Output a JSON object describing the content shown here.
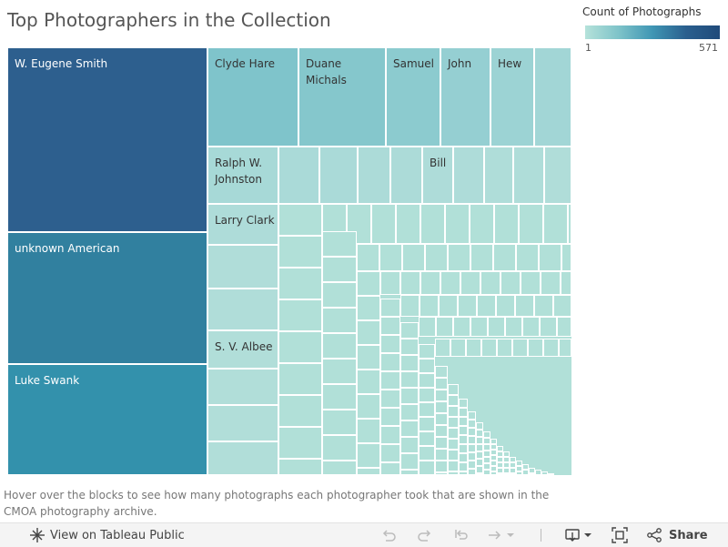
{
  "title": "Top Photographers in the Collection",
  "legend": {
    "title": "Count of Photographs",
    "min": "1",
    "max": "571"
  },
  "treemap": {
    "labels": {
      "w_eugene_smith": "W. Eugene Smith",
      "unknown_american": "unknown American",
      "luke_swank": "Luke Swank",
      "clyde_hare": "Clyde Hare",
      "duane_michals": "Duane Michals",
      "samuel": "Samuel",
      "john": "John",
      "hew": "Hew",
      "ralph_johnston": "Ralph W. Johnston",
      "larry_clark": "Larry Clark",
      "sv_albee": "S. V. Albee",
      "bill": "Bill"
    }
  },
  "caption": "Hover over the blocks to see how many photographs each photographer took that are shown in the CMOA photography archive.",
  "toolbar": {
    "view_label": "View on Tableau Public",
    "share_label": "Share",
    "icons": [
      "tableau-icon",
      "undo-icon",
      "redo-icon",
      "revert-icon",
      "refresh-icon",
      "pause-icon",
      "download-icon",
      "fullscreen-icon",
      "share-icon"
    ]
  },
  "colors": {
    "darkest": "#2d5f8e",
    "dark": "#31809f",
    "mid": "#3391ac",
    "light": "#7fc4cb",
    "lighter": "#8ccbcf",
    "lightest": "#b1e0d8"
  }
}
